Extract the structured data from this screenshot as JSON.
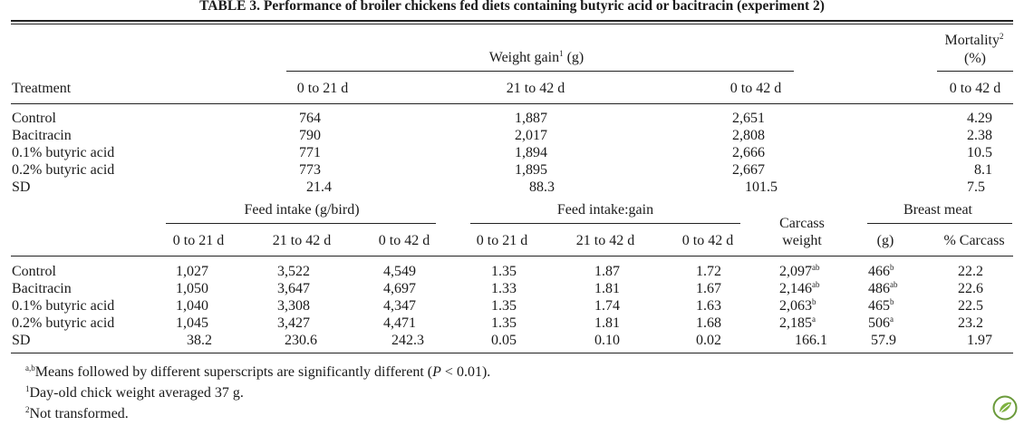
{
  "title": "TABLE 3. Performance of broiler chickens fed diets containing butyric acid or bacitracin (experiment 2)",
  "top": {
    "weight_gain_label": "Weight gain",
    "weight_gain_sup": "1",
    "weight_gain_unit": "(g)",
    "mortality_label": "Mortality",
    "mortality_sup": "2",
    "mortality_unit": "(%)",
    "treatment_label": "Treatment",
    "col_headers": [
      "0 to 21 d",
      "21 to 42 d",
      "0 to 42 d",
      "0 to 42 d"
    ],
    "rows": [
      {
        "label": "Control",
        "values": [
          "764",
          "1,887",
          "2,651",
          "4.29"
        ]
      },
      {
        "label": "Bacitracin",
        "values": [
          "790",
          "2,017",
          "2,808",
          "2.38"
        ]
      },
      {
        "label": "0.1% butyric acid",
        "values": [
          "771",
          "1,894",
          "2,666",
          "10.5"
        ]
      },
      {
        "label": "0.2% butyric acid",
        "values": [
          "773",
          "1,895",
          "2,667",
          "8.1"
        ]
      },
      {
        "label": "SD",
        "values": [
          "21.4",
          "88.3",
          "101.5",
          "7.5"
        ]
      }
    ]
  },
  "bottom": {
    "feed_intake_label": "Feed intake (g/bird)",
    "feed_gain_label": "Feed intake:gain",
    "carcass_label_1": "Carcass",
    "carcass_label_2": "weight",
    "breast_label": "Breast meat",
    "col_headers": [
      "0 to 21 d",
      "21 to 42 d",
      "0 to 42 d",
      "0 to 21 d",
      "21 to 42 d",
      "0 to 42 d",
      "(g)",
      "% Carcass"
    ],
    "rows": [
      {
        "label": "Control",
        "values": [
          "1,027",
          "3,522",
          "4,549",
          "1.35",
          "1.87",
          "1.72",
          "2,097",
          "466",
          "22.2"
        ],
        "carcass_sup": "ab",
        "breast_sup": "b"
      },
      {
        "label": "Bacitracin",
        "values": [
          "1,050",
          "3,647",
          "4,697",
          "1.33",
          "1.81",
          "1.67",
          "2,146",
          "486",
          "22.6"
        ],
        "carcass_sup": "ab",
        "breast_sup": "ab"
      },
      {
        "label": "0.1% butyric acid",
        "values": [
          "1,040",
          "3,308",
          "4,347",
          "1.35",
          "1.74",
          "1.63",
          "2,063",
          "465",
          "22.5"
        ],
        "carcass_sup": "b",
        "breast_sup": "b"
      },
      {
        "label": "0.2% butyric acid",
        "values": [
          "1,045",
          "3,427",
          "4,471",
          "1.35",
          "1.81",
          "1.68",
          "2,185",
          "506",
          "23.2"
        ],
        "carcass_sup": "a",
        "breast_sup": "a"
      },
      {
        "label": "SD",
        "values": [
          "38.2",
          "230.6",
          "242.3",
          "0.05",
          "0.10",
          "0.02",
          "166.1",
          "57.9",
          "1.97"
        ],
        "carcass_sup": "",
        "breast_sup": ""
      }
    ]
  },
  "footnotes": {
    "f1_sup": "a,b",
    "f1_text_before": "Means followed by different superscripts are significantly different (",
    "f1_p": "P",
    "f1_text_after": " < 0.01).",
    "f2_sup": "1",
    "f2_text": "Day-old chick weight averaged 37 g.",
    "f3_sup": "2",
    "f3_text": "Not transformed."
  },
  "logo_icon": "leaf-logo-icon"
}
